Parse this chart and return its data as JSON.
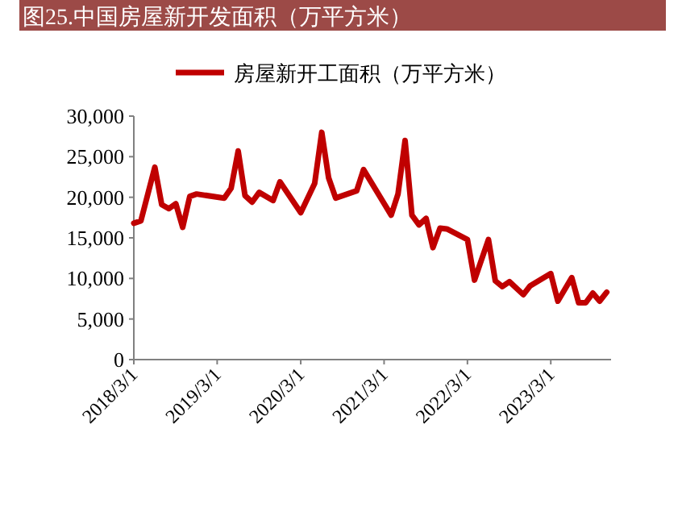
{
  "chart_data": {
    "type": "line",
    "title": "图25.中国房屋新开发面积（万平方米）",
    "x": [
      "2018-03",
      "2018-04",
      "2018-06",
      "2018-07",
      "2018-08",
      "2018-09",
      "2018-10",
      "2018-11",
      "2018-12",
      "2019-04",
      "2019-05",
      "2019-06",
      "2019-07",
      "2019-08",
      "2019-09",
      "2019-11",
      "2019-12",
      "2020-03",
      "2020-05",
      "2020-06",
      "2020-07",
      "2020-08",
      "2020-11",
      "2020-12",
      "2021-04",
      "2021-05",
      "2021-06",
      "2021-07",
      "2021-08",
      "2021-09",
      "2021-10",
      "2021-11",
      "2021-12",
      "2022-03",
      "2022-04",
      "2022-06",
      "2022-07",
      "2022-08",
      "2022-09",
      "2022-11",
      "2022-12",
      "2023-03",
      "2023-04",
      "2023-06",
      "2023-07",
      "2023-08",
      "2023-09",
      "2023-10",
      "2023-11"
    ],
    "series": [
      {
        "name": "房屋新开工面积（万平方米）",
        "color": "#c00000",
        "values": [
          16800,
          17100,
          23700,
          19100,
          18600,
          19200,
          16300,
          20100,
          20400,
          19900,
          21100,
          25700,
          20200,
          19400,
          20600,
          19600,
          21900,
          18100,
          21700,
          28000,
          22400,
          19900,
          20800,
          23400,
          17800,
          20400,
          27000,
          17800,
          16600,
          17400,
          13800,
          16200,
          16100,
          14800,
          9800,
          14800,
          9700,
          9000,
          9600,
          8000,
          9100,
          10600,
          7200,
          10100,
          7000,
          7000,
          8200,
          7200,
          8300
        ]
      }
    ],
    "xlim": [
      "2018-03-01",
      "2023-11-20"
    ],
    "xticks": [
      {
        "value": "2018-03-01",
        "label": "2018/3/1"
      },
      {
        "value": "2019-03-01",
        "label": "2019/3/1"
      },
      {
        "value": "2020-03-01",
        "label": "2020/3/1"
      },
      {
        "value": "2021-03-01",
        "label": "2021/3/1"
      },
      {
        "value": "2022-03-01",
        "label": "2022/3/1"
      },
      {
        "value": "2023-03-01",
        "label": "2023/3/1"
      }
    ],
    "ylim": [
      0,
      30000
    ],
    "yticks": [
      {
        "value": 0,
        "label": "0"
      },
      {
        "value": 5000,
        "label": "5,000"
      },
      {
        "value": 10000,
        "label": "10,000"
      },
      {
        "value": 15000,
        "label": "15,000"
      },
      {
        "value": 20000,
        "label": "20,000"
      },
      {
        "value": 25000,
        "label": "25,000"
      },
      {
        "value": 30000,
        "label": "30,000"
      }
    ],
    "grid": false,
    "legend": "top",
    "marker": "none",
    "line_style": "solid"
  }
}
